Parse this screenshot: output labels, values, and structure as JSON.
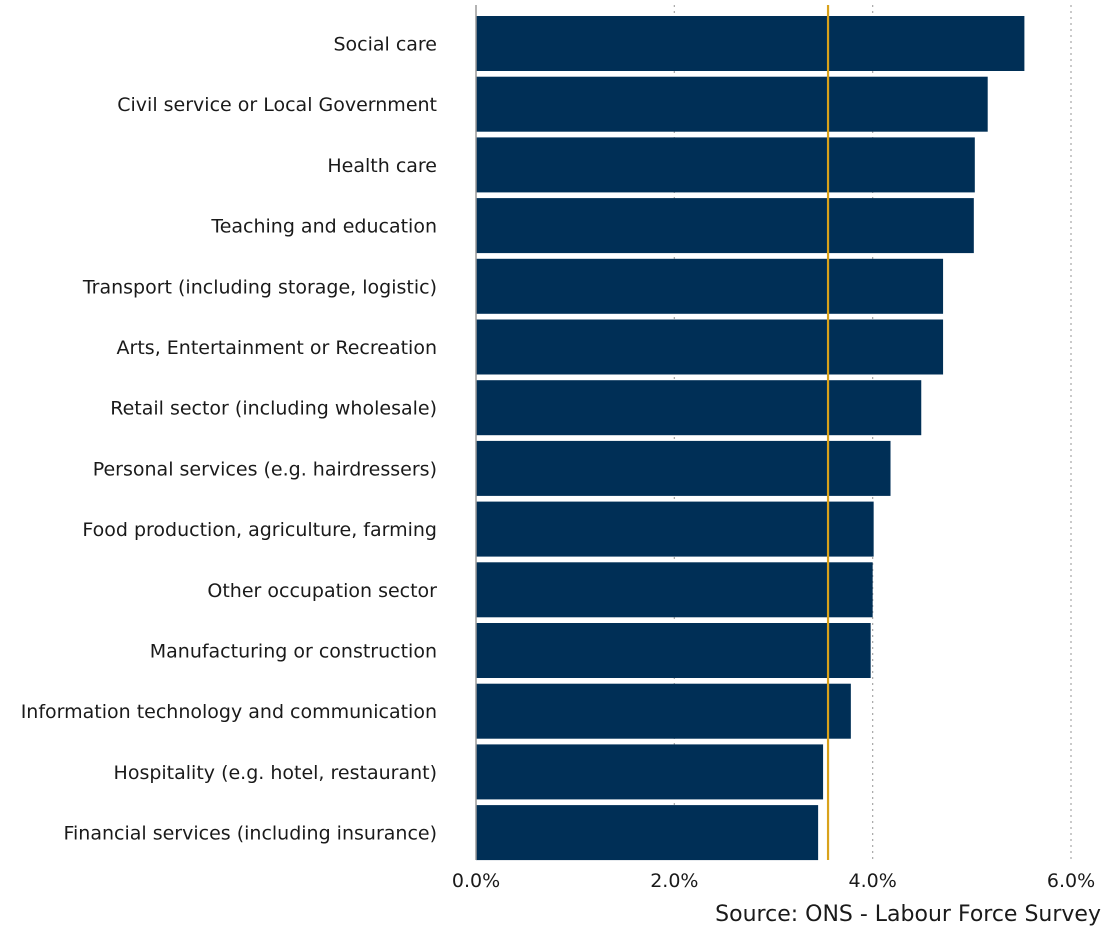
{
  "chart_data": {
    "type": "bar",
    "orientation": "horizontal",
    "categories": [
      "Social care",
      "Civil service or Local Government",
      "Health care",
      "Teaching and education",
      "Transport (including storage, logistic)",
      "Arts, Entertainment or Recreation",
      "Retail sector (including wholesale)",
      "Personal services (e.g. hairdressers)",
      "Food production, agriculture, farming",
      "Other occupation sector",
      "Manufacturing or construction",
      "Information technology and communication",
      "Hospitality (e.g. hotel, restaurant)",
      "Financial services (including insurance)"
    ],
    "values": [
      5.53,
      5.16,
      5.03,
      5.02,
      4.71,
      4.71,
      4.49,
      4.18,
      4.01,
      4.0,
      3.98,
      3.78,
      3.5,
      3.45
    ],
    "value_unit": "%",
    "xlim": [
      0,
      6.0
    ],
    "xticks": [
      0,
      2,
      4,
      6
    ],
    "xtick_labels": [
      "0.0%",
      "2.0%",
      "4.0%",
      "6.0%"
    ],
    "reference_line": 3.55,
    "grid": true,
    "legend": "none",
    "title": "",
    "xlabel": "",
    "ylabel": "",
    "source_note": "Source: ONS - Labour Force Survey",
    "colors": {
      "bar": "#002f56",
      "reference_line": "#d9a21b",
      "grid": "#a6a6a6",
      "axis": "#9a9a9a"
    }
  }
}
